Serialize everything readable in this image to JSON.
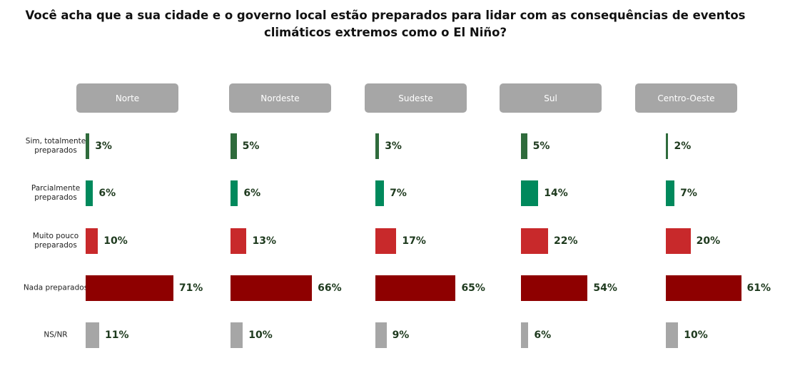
{
  "chart_data": {
    "type": "bar",
    "orientation": "horizontal",
    "title": "Você acha que a sua cidade e o governo local estão preparados para lidar com as consequências de eventos climáticos extremos como o El Niño?",
    "categories": [
      "Sim, totalmente preparados",
      "Parcialmente preparados",
      "Muito pouco preparados",
      "Nada preparados",
      "NS/NR"
    ],
    "colors": [
      "#2f6b3c",
      "#00895c",
      "#c8292b",
      "#8e0000",
      "#a6a6a6"
    ],
    "series": [
      {
        "name": "Norte",
        "values": [
          3,
          6,
          10,
          71,
          11
        ],
        "value_labels": [
          "3%",
          "6%",
          "10%",
          "71%",
          "11%"
        ]
      },
      {
        "name": "Nordeste",
        "values": [
          5,
          6,
          13,
          66,
          10
        ],
        "value_labels": [
          "5%",
          "6%",
          "13%",
          "66%",
          "10%"
        ]
      },
      {
        "name": "Sudeste",
        "values": [
          3,
          7,
          17,
          65,
          9
        ],
        "value_labels": [
          "3%",
          "7%",
          "17%",
          "65%",
          "9%"
        ]
      },
      {
        "name": "Sul",
        "values": [
          5,
          14,
          22,
          54,
          6
        ],
        "value_labels": [
          "5%",
          "14%",
          "22%",
          "54%",
          "6%"
        ]
      },
      {
        "name": "Centro-Oeste",
        "values": [
          2,
          7,
          20,
          61,
          10
        ],
        "value_labels": [
          "2%",
          "7%",
          "20%",
          "61%",
          "10%"
        ]
      }
    ]
  }
}
